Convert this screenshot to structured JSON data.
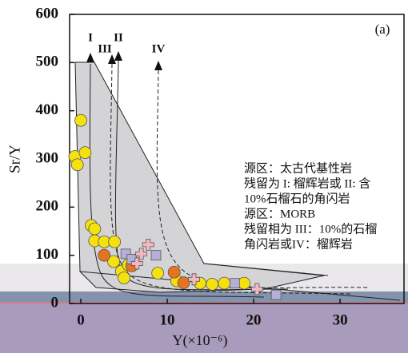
{
  "chart_data": {
    "type": "scatter",
    "panel_label": "(a)",
    "ylabel": "Sr/Y",
    "xlabel": "Y(×10⁻⁶)",
    "xlim": [
      -1.3,
      37.4
    ],
    "ylim": [
      0,
      600
    ],
    "xticks": [
      0,
      10,
      20,
      30
    ],
    "yticks": [
      0,
      100,
      200,
      300,
      400,
      500,
      600
    ],
    "curve_labels": [
      "I",
      "II",
      "III",
      "IV"
    ],
    "annotations": [
      "源区：太古代基性岩",
      "残留为 I: 榴辉岩或 II: 含",
      "10%石榴石的角闪岩",
      "源区：MORB",
      "残留相为 III：10%的石榴",
      "角闪岩或IV：榴辉岩"
    ],
    "series": [
      {
        "color": "#f5e10f",
        "marker": "circle",
        "x": [
          0,
          -0.7,
          -0.4,
          0.5,
          1.2,
          1.6,
          1.6,
          2.7,
          3.9,
          3.8,
          4.7,
          5,
          5.5,
          8.9,
          11.1,
          13.8,
          15.2,
          16.6,
          18.9
        ],
        "values": [
          380,
          305,
          288,
          313,
          162,
          155,
          130,
          128,
          128,
          87,
          67,
          53,
          80,
          63,
          47,
          42,
          40,
          42,
          42
        ]
      },
      {
        "color": "#e8731e",
        "marker": "circle",
        "x": [
          2.7,
          5.9,
          10.8,
          11.9
        ],
        "values": [
          100,
          78,
          65,
          43
        ]
      },
      {
        "color": "#b5b0d8",
        "marker": "square",
        "x": [
          5.2,
          5.9,
          8.7,
          17.8,
          22.6
        ],
        "values": [
          103,
          92,
          100,
          42,
          18
        ]
      },
      {
        "color": "#f4b6c0",
        "marker": "cross",
        "x": [
          7.8,
          7,
          6.5,
          13.1,
          20.4
        ],
        "values": [
          122,
          103,
          83,
          50,
          30
        ]
      }
    ]
  }
}
